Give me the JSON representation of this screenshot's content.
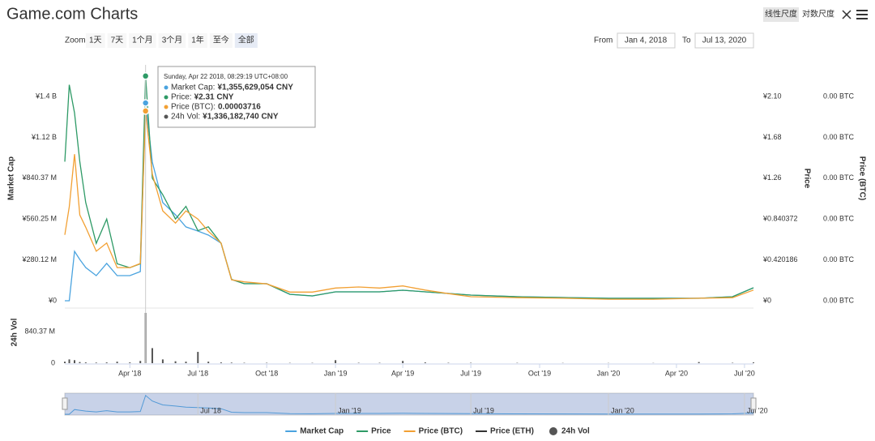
{
  "header": {
    "title": "Game.com Charts",
    "scale_buttons": [
      "线性尺度",
      "对数尺度"
    ]
  },
  "range_selector": {
    "label": "Zoom",
    "buttons": [
      "1天",
      "7天",
      "1个月",
      "3个月",
      "1年",
      "至今",
      "全部"
    ],
    "selected": 6,
    "from_label": "From",
    "from": "Jan 4, 2018",
    "to_label": "To",
    "to": "Jul 13, 2020"
  },
  "chart_data": {
    "type": "line",
    "x": [
      "2018-01-04",
      "2018-01-10",
      "2018-01-17",
      "2018-01-24",
      "2018-02-01",
      "2018-02-15",
      "2018-03-01",
      "2018-03-15",
      "2018-04-01",
      "2018-04-15",
      "2018-04-22",
      "2018-05-01",
      "2018-05-15",
      "2018-06-01",
      "2018-06-15",
      "2018-07-01",
      "2018-07-15",
      "2018-08-01",
      "2018-08-15",
      "2018-09-01",
      "2018-10-01",
      "2018-11-01",
      "2018-12-01",
      "2019-01-01",
      "2019-02-01",
      "2019-03-01",
      "2019-04-01",
      "2019-05-01",
      "2019-06-01",
      "2019-07-01",
      "2019-09-01",
      "2019-11-01",
      "2020-01-01",
      "2020-03-01",
      "2020-05-01",
      "2020-06-15",
      "2020-07-13"
    ],
    "xlim": [
      "2018-01-04",
      "2020-07-13"
    ],
    "xticks": [
      {
        "value": "2018-04-01",
        "label": "Apr '18"
      },
      {
        "value": "2018-07-01",
        "label": "Jul '18"
      },
      {
        "value": "2018-10-01",
        "label": "Oct '18"
      },
      {
        "value": "2019-01-01",
        "label": "Jan '19"
      },
      {
        "value": "2019-04-01",
        "label": "Apr '19"
      },
      {
        "value": "2019-07-01",
        "label": "Jul '19"
      },
      {
        "value": "2019-10-01",
        "label": "Oct '19"
      },
      {
        "value": "2020-01-01",
        "label": "Jan '20"
      },
      {
        "value": "2020-04-01",
        "label": "Apr '20"
      },
      {
        "value": "2020-07-01",
        "label": "Jul '20"
      }
    ],
    "y_label": "Market Cap",
    "ylim": [
      0,
      1400000000
    ],
    "yticks": [
      {
        "value": 0,
        "label": "¥0"
      },
      {
        "value": 280120000,
        "label": "¥280.12 M"
      },
      {
        "value": 560250000,
        "label": "¥560.25 M"
      },
      {
        "value": 840370000,
        "label": "¥840.37 M"
      },
      {
        "value": 1120000000,
        "label": "¥1.12 B"
      },
      {
        "value": 1400000000,
        "label": "¥1.4 B"
      }
    ],
    "y2_label": "Price",
    "y2lim": [
      0,
      2.1
    ],
    "y2ticks": [
      {
        "value": 0,
        "label": "¥0"
      },
      {
        "value": 0.420186,
        "label": "¥0.420186"
      },
      {
        "value": 0.840372,
        "label": "¥0.840372"
      },
      {
        "value": 1.26,
        "label": "¥1.26"
      },
      {
        "value": 1.68,
        "label": "¥1.68"
      },
      {
        "value": 2.1,
        "label": "¥2.10"
      }
    ],
    "y3_label": "Price (BTC)",
    "y3lim": [
      0,
      4e-05
    ],
    "y3ticks": [
      {
        "value": 0,
        "label": "0.00 BTC"
      },
      {
        "value": 8e-06,
        "label": "0.00 BTC"
      },
      {
        "value": 1.6e-05,
        "label": "0.00 BTC"
      },
      {
        "value": 2.4e-05,
        "label": "0.00 BTC"
      },
      {
        "value": 3.2e-05,
        "label": "0.00 BTC"
      },
      {
        "value": 4e-05,
        "label": "0.00 BTC"
      }
    ],
    "vol_label": "24h Vol",
    "vol_ylim": [
      0,
      1465000000
    ],
    "vol_yticks": [
      0,
      {
        "value": 840370000,
        "label": "840.37 M"
      }
    ],
    "grid": false,
    "series": [
      {
        "name": "Market Cap",
        "color": "#4aa3df",
        "axis": "y",
        "values": [
          0,
          0,
          339000000,
          283000000,
          228000000,
          172000000,
          256000000,
          172000000,
          172000000,
          200000000,
          1355629054,
          950000000,
          673000000,
          589000000,
          506000000,
          478000000,
          450000000,
          395000000,
          145000000,
          117000000,
          117000000,
          44000000,
          33000000,
          61000000,
          61000000,
          61000000,
          72000000,
          61000000,
          50000000,
          39000000,
          28000000,
          22000000,
          17000000,
          17000000,
          17000000,
          28000000,
          89000000
        ]
      },
      {
        "name": "Price",
        "color": "#2e9a66",
        "axis": "y2",
        "values": [
          1.43,
          2.22,
          1.93,
          1.43,
          1.01,
          0.59,
          0.84,
          0.38,
          0.34,
          0.38,
          2.31,
          1.26,
          1.09,
          0.84,
          0.97,
          0.72,
          0.76,
          0.59,
          0.22,
          0.175,
          0.175,
          0.067,
          0.05,
          0.092,
          0.092,
          0.092,
          0.108,
          0.092,
          0.075,
          0.058,
          0.042,
          0.033,
          0.025,
          0.025,
          0.025,
          0.042,
          0.133
        ]
      },
      {
        "name": "Price (BTC)",
        "color": "#f2a033",
        "axis": "y3",
        "values": [
          1.29e-05,
          1.84e-05,
          2.87e-05,
          1.68e-05,
          1.44e-05,
          9.7e-06,
          1.13e-05,
          6.5e-06,
          6.5e-06,
          7.3e-06,
          3.716e-05,
          2.48e-05,
          1.76e-05,
          1.52e-05,
          1.76e-05,
          1.6e-05,
          1.36e-05,
          1.13e-05,
          4.1e-06,
          3.7e-06,
          3.3e-06,
          1.7e-06,
          1.7e-06,
          2.5e-06,
          2.7e-06,
          2.5e-06,
          2.9e-06,
          2.1e-06,
          1.4e-06,
          8e-07,
          6e-07,
          5e-07,
          3e-07,
          3e-07,
          5e-07,
          6e-07,
          2.1e-06
        ]
      },
      {
        "name": "Price (ETH)",
        "color": "#333333",
        "axis": "y",
        "values": [
          null,
          null,
          null,
          null,
          null,
          null,
          null,
          null,
          null,
          null,
          null,
          null,
          null,
          null,
          null,
          null,
          null,
          null,
          null,
          null,
          null,
          null,
          null,
          null,
          null,
          null,
          null,
          null,
          null,
          null,
          null,
          null,
          null,
          null,
          null,
          null,
          null
        ]
      },
      {
        "name": "24h Vol",
        "color": "#555555",
        "axis": "vol",
        "type": "column",
        "values": [
          40000000,
          100000000,
          80000000,
          30000000,
          20000000,
          15000000,
          20000000,
          40000000,
          20000000,
          60000000,
          1336182740,
          400000000,
          100000000,
          50000000,
          40000000,
          300000000,
          40000000,
          20000000,
          15000000,
          10000000,
          10000000,
          8000000,
          8000000,
          80000000,
          10000000,
          10000000,
          60000000,
          20000000,
          10000000,
          10000000,
          8000000,
          6000000,
          5000000,
          5000000,
          30000000,
          10000000,
          20000000
        ]
      }
    ],
    "tooltip": {
      "date": "Sunday, Apr 22 2018, 08:29:19 UTC+08:00",
      "rows": [
        {
          "label": "Market Cap:",
          "value": "¥1,355,629,054 CNY"
        },
        {
          "label": "Price:",
          "value": "¥2.31 CNY"
        },
        {
          "label": "Price (BTC):",
          "value": "0.00003716"
        },
        {
          "label": "24h Vol:",
          "value": "¥1,336,182,740 CNY"
        }
      ]
    },
    "navigator": {
      "xticks": [
        {
          "value": "2018-07-01",
          "label": "Jul '18"
        },
        {
          "value": "2019-01-01",
          "label": "Jan '19"
        },
        {
          "value": "2019-07-01",
          "label": "Jul '19"
        },
        {
          "value": "2020-01-01",
          "label": "Jan '20"
        },
        {
          "value": "2020-07-01",
          "label": "Jul '20"
        }
      ]
    }
  }
}
